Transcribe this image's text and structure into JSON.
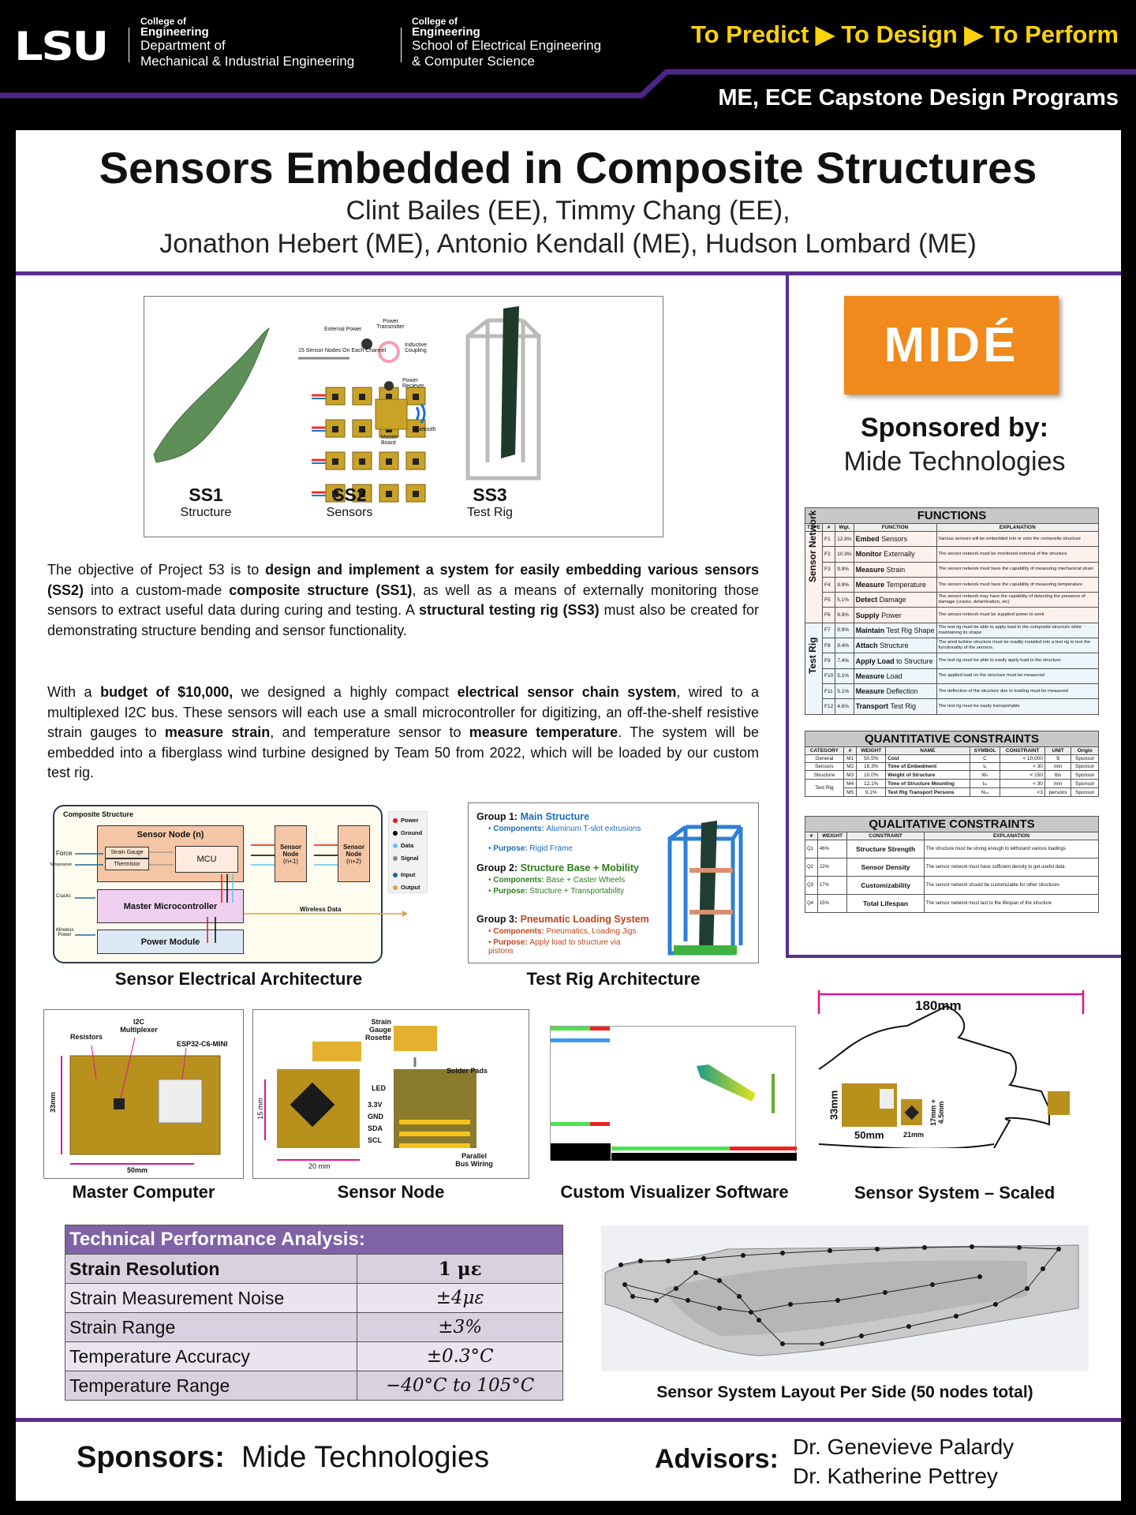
{
  "header": {
    "logo": "LSU",
    "college": "College of",
    "engineering": "Engineering",
    "dept1a": "Department of",
    "dept1b": "Mechanical & Industrial Engineering",
    "dept2a": "School of Electrical Engineering",
    "dept2b": "& Computer Science",
    "tagline": "To Predict ▶ To Design ▶ To Perform",
    "program": "ME, ECE Capstone Design Programs"
  },
  "title": "Sensors Embedded in Composite Structures",
  "authors": [
    "Clint Bailes (EE),  Timmy Chang (EE),",
    "Jonathon Hebert (ME), Antonio Kendall (ME),  Hudson Lombard (ME)"
  ],
  "subsystems": {
    "items": [
      {
        "code": "SS1",
        "name": "Structure"
      },
      {
        "code": "SS2",
        "name": "Sensors"
      },
      {
        "code": "SS3",
        "name": "Test Rig"
      }
    ],
    "ss2_labels": {
      "external_power": "External Power",
      "transmitter": "Power Transmitter",
      "coupling": "Inductive Coupling",
      "channel": "15 Sensor Nodes On Each Channel",
      "receiver": "Power Reciever",
      "master": "Master Board",
      "bluetooth": "Bluetooth"
    }
  },
  "para1": [
    "The objective of Project 53 is to ",
    "design and implement a system for easily embedding various sensors (SS2)",
    " into a custom-made ",
    "composite structure (SS1)",
    ", as well as a means of externally monitoring those sensors to extract useful data during curing and testing. A ",
    "structural testing rig (SS3)",
    " must also be created for demonstrating structure bending and sensor functionality."
  ],
  "para2": [
    "With a ",
    "budget of $10,000,",
    " we designed a highly compact ",
    "electrical sensor chain system",
    ", wired to a multiplexed I2C bus. These sensors will each use a small microcontroller for digitizing, an off-the-shelf resistive strain gauges to ",
    "measure strain",
    ", and temperature sensor to ",
    "measure temperature",
    ". The system will be embedded into a fiberglass wind turbine designed by Team 50 from 2022, which will be loaded by our custom test rig."
  ],
  "arch": {
    "composite": "Composite Structure",
    "node_n": "Sensor Node (n)",
    "strain_gauge": "Strain Gauge",
    "thermistor": "Thermistor",
    "mcu": "MCU",
    "node_n1": "Sensor Node",
    "node_n1b": "(n+1)",
    "node_n2": "Sensor Node",
    "node_n2b": "(n+2)",
    "master": "Master Microcontroller",
    "power": "Power Module",
    "force": "Force",
    "temperature": "Temperature",
    "cracks": "Cracks",
    "wireless_power": "Wireless Power",
    "wireless_data": "Wireless Data",
    "legend": [
      {
        "label": "Power",
        "color": "#ee1111"
      },
      {
        "label": "Ground",
        "color": "#000000"
      },
      {
        "label": "Data",
        "color": "#5bc4f0"
      },
      {
        "label": "Signal",
        "color": "#888888"
      },
      {
        "label": "Input",
        "color": "#1f6a9a"
      },
      {
        "label": "Output",
        "color": "#e0a040"
      }
    ],
    "caption": "Sensor Electrical Architecture"
  },
  "rig": {
    "groups": [
      {
        "title": "Group 1: ",
        "name": "Main Structure",
        "color": "#1a6cc0",
        "comp_label": "Components: ",
        "comp": "Aluminum T-slot extrusions",
        "purp_label": "Purpose: ",
        "purp": "Rigid Frame"
      },
      {
        "title": "Group 2: ",
        "name": "Structure Base + Mobility",
        "color": "#2e7d1e",
        "comp_label": "Components: ",
        "comp": "Base + Caster Wheels",
        "purp_label": "Purpose: ",
        "purp": "Structure + Transportability"
      },
      {
        "title": "Group 3: ",
        "name": "Pneumatic Loading System",
        "color": "#c0461a",
        "comp_label": "Components: ",
        "comp": "Pneumatics, Loading Jigs",
        "purp_label": "Purpose: ",
        "purp": "Apply load to structure via pistons"
      }
    ],
    "caption": "Test Rig Architecture"
  },
  "sponsor_panel": {
    "logo": "MIDÉ",
    "sponsored_by": "Sponsored by:",
    "name": "Mide Technologies"
  },
  "functions": {
    "title": "FUNCTIONS",
    "headers": [
      "TYPE",
      "#",
      "Wgt.",
      "FUNCTION",
      "EXPLANATION"
    ],
    "groups": [
      {
        "type": "Sensor Network",
        "rows": [
          [
            "F1",
            "12.8%",
            "Embed",
            " Sensors",
            "Various sensors will be embedded into or onto the composite structure"
          ],
          [
            "F2",
            "10.9%",
            "Monitor",
            " Externally",
            "The sensor network must be monitored external of the structure"
          ],
          [
            "F3",
            "9.9%",
            "Measure",
            " Strain",
            "The sensor network must have the capability of measuring mechanical strain"
          ],
          [
            "F4",
            "9.9%",
            "Measure",
            " Temperature",
            "The sensor network must have the capability of measuring temperature"
          ],
          [
            "F5",
            "5.1%",
            "Detect",
            " Damage",
            "The sensor network may have the capability of detecting the presence of damage (cracks, delamination, etc)"
          ],
          [
            "F6",
            "9.9%",
            "Supply",
            " Power",
            "The sensor network must be supplied power to work"
          ]
        ]
      },
      {
        "type": "Test Rig",
        "rows": [
          [
            "F7",
            "9.9%",
            "Maintain",
            " Test Rig Shape",
            "The test rig must be able to apply load to the composite structure while maintaining its shape"
          ],
          [
            "F8",
            "9.4%",
            "Attach",
            " Structure",
            "The wind turbine structure must be readily installed into a test rig to test the functionality of the sensors."
          ],
          [
            "F9",
            "7.4%",
            "Apply Load",
            " to Structure",
            "The test rig must be able to easily apply load to the structure"
          ],
          [
            "F10",
            "5.1%",
            "Measure",
            " Load",
            "The applied load on the structure must be measured"
          ],
          [
            "F11",
            "5.1%",
            "Measure",
            " Deflection",
            "The deflection of the structure due to loading must be measured"
          ],
          [
            "F12",
            "4.6%",
            "Transport",
            " Test Rig",
            "The test rig must be easily transportable"
          ]
        ]
      }
    ]
  },
  "quant": {
    "title": "QUANTITATIVE CONSTRAINTS",
    "headers": [
      "CATEGORY",
      "#",
      "WEIGHT",
      "NAME",
      "SYMBOL",
      "CONSTRAINT",
      "UNIT",
      "Origin"
    ],
    "rows": [
      [
        "General",
        "M1",
        "50.5%",
        "Cost",
        "C",
        "< 10,000",
        "$",
        "Sponsor"
      ],
      [
        "Sensors",
        "M2",
        "18.3%",
        "Time of Embedment",
        "tₑ",
        "< 30",
        "min",
        "Sponsor"
      ],
      [
        "Structure",
        "M3",
        "10.0%",
        "Weight of Structure",
        "Wₛ",
        "< 150",
        "lbs",
        "Sponsor"
      ],
      [
        "Test Rig",
        "M4",
        "12.1%",
        "Time of Structure Mounting",
        "tₘ",
        "< 30",
        "min",
        "Sponsor"
      ],
      [
        "",
        "M5",
        "9.1%",
        "Test Rig Transport Persons",
        "Nₜₚ",
        "<3",
        "persons",
        "Sponsor"
      ]
    ]
  },
  "qual": {
    "title": "QUALITATIVE CONSTRAINTS",
    "headers": [
      "#",
      "WEIGHT",
      "CONSTRAINT",
      "EXPLANATION"
    ],
    "rows": [
      [
        "Q1",
        "46%",
        "Structure Strength",
        "The structure must be strong enough to withstand various loadings"
      ],
      [
        "Q2",
        "22%",
        "Sensor Density",
        "The sensor network must have sufficient density to get useful data"
      ],
      [
        "Q3",
        "17%",
        "Customizability",
        "The sensor network should be customizable for other structures"
      ],
      [
        "Q4",
        "15%",
        "Total Lifespan",
        "The sensor network must last to the lifespan of the structure"
      ]
    ]
  },
  "master": {
    "resistors": "Resistors",
    "mux": "I2C Multiplexer",
    "esp": "ESP32-C6-MINI",
    "h": "33mm",
    "w": "50mm",
    "caption": "Master Computer"
  },
  "node": {
    "rosette": "Strain Gauge Rosette",
    "pads": "Solder Pads",
    "led": "LED",
    "pins": [
      "3.3V",
      "GND",
      "SDA",
      "SCL"
    ],
    "h": "15 mm",
    "w": "20 mm",
    "bus": "Parallel Bus Wiring",
    "caption": "Sensor Node"
  },
  "visualizer": {
    "caption": "Custom Visualizer Software"
  },
  "scaled": {
    "span": "180mm",
    "h": "33mm",
    "w1": "50mm",
    "w2": "21mm",
    "h2": "17mm + 4.5mm",
    "caption": "Sensor System – Scaled"
  },
  "tech": {
    "title": "Technical Performance Analysis:",
    "rows": [
      [
        "Strain Resolution",
        "1 με"
      ],
      [
        "Strain Measurement Noise",
        "±4με"
      ],
      [
        "Strain Range",
        "±3%"
      ],
      [
        "Temperature Accuracy",
        "±0.3°C"
      ],
      [
        "Temperature Range",
        "−40°C  to 105°C"
      ]
    ]
  },
  "layout_caption": "Sensor System Layout Per Side (50 nodes total)",
  "footer": {
    "sponsors_label": "Sponsors:",
    "sponsors": "Mide Technologies",
    "advisors_label": "Advisors:",
    "advisors": [
      "Dr. Genevieve Palardy",
      "Dr. Katherine Pettrey"
    ]
  }
}
